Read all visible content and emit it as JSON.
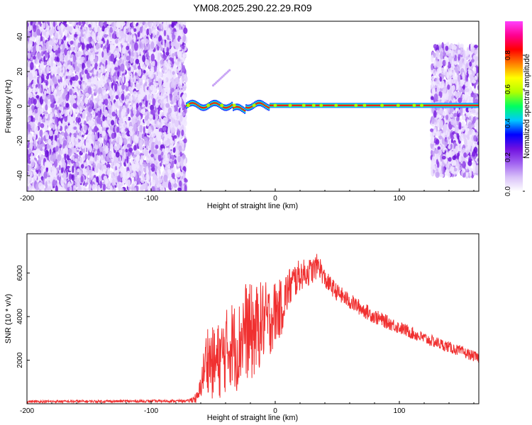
{
  "title": "YM08.2025.290.22.29.R09",
  "chart_data": [
    {
      "type": "heatmap",
      "xlabel": "Height of straight line (km)",
      "ylabel": "Frequency (Hz)",
      "xlim": [
        -200,
        164
      ],
      "ylim": [
        -49,
        49
      ],
      "x_ticks": [
        -200,
        -100,
        0,
        100
      ],
      "y_ticks": [
        -40,
        -20,
        0,
        20,
        40
      ],
      "colorbar": {
        "label": "Normalized spectral amplitude",
        "range": [
          0,
          1
        ],
        "ticks": [
          "0.0",
          "0.2",
          "0.4",
          "0.6",
          "0.8"
        ],
        "colors": [
          "#ffffff",
          "#d8c0f8",
          "#a060f0",
          "#7010e0",
          "#0000ff",
          "#00c8ff",
          "#00ff60",
          "#b0ff00",
          "#ffff00",
          "#ff8000",
          "#ff0000",
          "#ff0090",
          "#ff40ff"
        ]
      },
      "regions": [
        {
          "name": "noise",
          "x_range": [
            -200,
            -72
          ],
          "freq_range": [
            -49,
            49
          ]
        },
        {
          "name": "signal-line",
          "x_range": [
            -72,
            164
          ],
          "freq_center": 0.5
        },
        {
          "name": "noise",
          "x_range": [
            126,
            164
          ],
          "freq_range": [
            -40,
            35
          ]
        }
      ]
    },
    {
      "type": "line",
      "xlabel": "Height of straight line (km)",
      "ylabel": "SNR (10 * v/v)",
      "xlim": [
        -200,
        164
      ],
      "ylim": [
        0,
        7800
      ],
      "x_ticks": [
        -200,
        -100,
        0,
        100
      ],
      "y_ticks": [
        2000,
        4000,
        6000
      ],
      "series": [
        {
          "name": "SNR",
          "color": "#f03030",
          "x": [
            -200,
            -150,
            -100,
            -70,
            -62,
            -58,
            -55,
            -50,
            -45,
            -40,
            -35,
            -30,
            -25,
            -20,
            -15,
            -10,
            -5,
            0,
            5,
            10,
            15,
            20,
            25,
            30,
            35,
            40,
            50,
            60,
            80,
            100,
            120,
            140,
            164
          ],
          "base": [
            100,
            110,
            120,
            130,
            300,
            1400,
            2200,
            1800,
            2000,
            2400,
            2800,
            2500,
            3500,
            3200,
            3400,
            3800,
            3800,
            4200,
            4400,
            5200,
            5600,
            5900,
            6000,
            6100,
            6400,
            5700,
            5100,
            4700,
            4000,
            3500,
            3000,
            2600,
            2100
          ],
          "amp": [
            60,
            60,
            60,
            60,
            300,
            900,
            1600,
            1700,
            1800,
            1900,
            2000,
            2000,
            2200,
            2300,
            2100,
            1900,
            1700,
            1500,
            1300,
            1000,
            900,
            700,
            650,
            600,
            550,
            450,
            400,
            380,
            340,
            300,
            280,
            260,
            240
          ]
        }
      ]
    }
  ]
}
